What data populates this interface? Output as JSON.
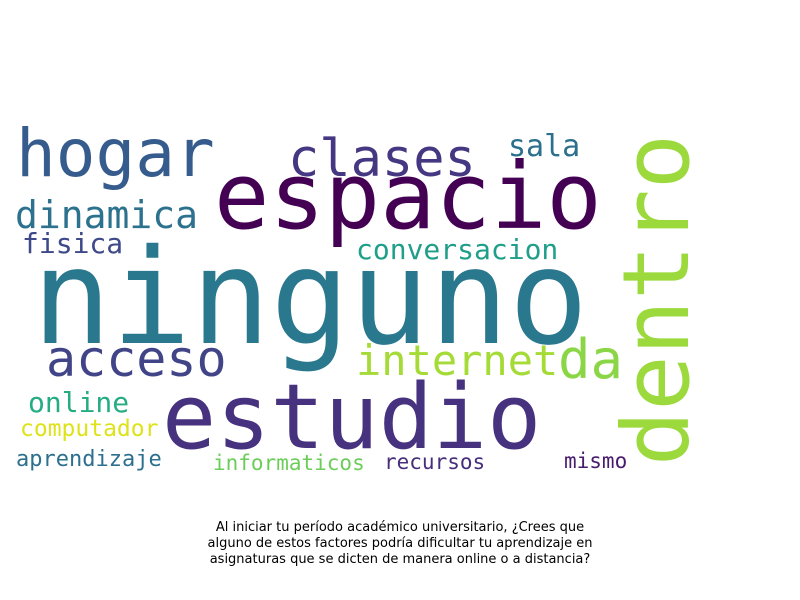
{
  "wordcloud": {
    "words": [
      {
        "id": "ninguno",
        "text": "ninguno",
        "color": "#2a788e"
      },
      {
        "id": "espacio",
        "text": "espacio",
        "color": "#440154"
      },
      {
        "id": "estudio",
        "text": "estudio",
        "color": "#46327e"
      },
      {
        "id": "dentro",
        "text": "dentro",
        "color": "#9bd93c"
      },
      {
        "id": "hogar",
        "text": "hogar",
        "color": "#365c8d"
      },
      {
        "id": "clases",
        "text": "clases",
        "color": "#453781"
      },
      {
        "id": "acceso",
        "text": "acceso",
        "color": "#414487"
      },
      {
        "id": "internet",
        "text": "internet",
        "color": "#a5db36"
      },
      {
        "id": "da",
        "text": "da",
        "color": "#8bd646"
      },
      {
        "id": "dinamica",
        "text": "dinamica",
        "color": "#2c728e"
      },
      {
        "id": "sala",
        "text": "sala",
        "color": "#2d708e"
      },
      {
        "id": "conversacion",
        "text": "conversacion",
        "color": "#1f9e89"
      },
      {
        "id": "fisica",
        "text": "fisica",
        "color": "#3e4989"
      },
      {
        "id": "online",
        "text": "online",
        "color": "#25ac82"
      },
      {
        "id": "computador",
        "text": "computador",
        "color": "#dde318"
      },
      {
        "id": "aprendizaje",
        "text": "aprendizaje",
        "color": "#2d708e"
      },
      {
        "id": "informaticos",
        "text": "informaticos",
        "color": "#6ccd5a"
      },
      {
        "id": "recursos",
        "text": "recursos",
        "color": "#472d7b"
      },
      {
        "id": "mismo",
        "text": "mismo",
        "color": "#481b6d"
      }
    ]
  },
  "caption": {
    "line1": "Al iniciar tu período académico universitario, ¿Crees que",
    "line2": "alguno de estos factores podría dificultar tu aprendizaje en",
    "line3": "asignaturas que se dicten de manera online o a distancia?"
  }
}
